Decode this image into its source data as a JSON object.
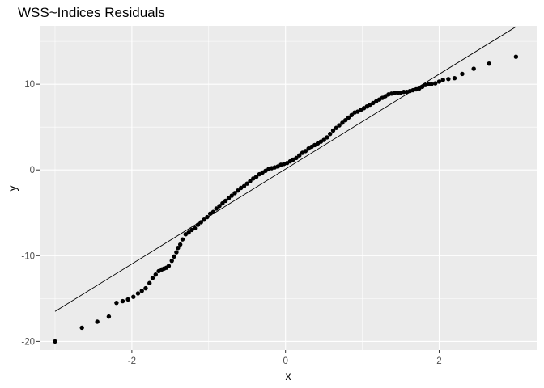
{
  "chart_data": {
    "type": "scatter",
    "title": "WSS~Indices Residuals",
    "xlabel": "x",
    "ylabel": "y",
    "xlim": [
      -3.2,
      3.27
    ],
    "ylim": [
      -21.0,
      16.8
    ],
    "x_ticks": [
      -2,
      0,
      2
    ],
    "x_tick_labels": [
      "-2",
      "0",
      "2"
    ],
    "x_minor_ticks": [
      -3,
      -1,
      1,
      3
    ],
    "y_ticks": [
      -20,
      -10,
      0,
      10
    ],
    "y_tick_labels": [
      "-20",
      "-10",
      "0",
      "10"
    ],
    "y_minor_ticks": [
      -15,
      -5,
      5,
      15
    ],
    "grid": true,
    "legend": "none",
    "reference_line": {
      "x": [
        -3.0,
        3.0
      ],
      "y": [
        -16.5,
        16.7
      ]
    },
    "points": {
      "x": [
        -3.0,
        -2.65,
        -2.45,
        -2.3,
        -2.2,
        -2.12,
        -2.05,
        -1.98,
        -1.92,
        -1.87,
        -1.82,
        -1.77,
        -1.73,
        -1.69,
        -1.65,
        -1.61,
        -1.58,
        -1.55,
        -1.52,
        -1.48,
        -1.45,
        -1.42,
        -1.4,
        -1.37,
        -1.34,
        -1.3,
        -1.26,
        -1.22,
        -1.18,
        -1.14,
        -1.1,
        -1.06,
        -1.02,
        -0.98,
        -0.94,
        -0.9,
        -0.86,
        -0.82,
        -0.78,
        -0.74,
        -0.7,
        -0.66,
        -0.62,
        -0.58,
        -0.54,
        -0.5,
        -0.46,
        -0.42,
        -0.38,
        -0.34,
        -0.3,
        -0.26,
        -0.22,
        -0.18,
        -0.14,
        -0.1,
        -0.06,
        -0.02,
        0.02,
        0.06,
        0.1,
        0.14,
        0.18,
        0.22,
        0.26,
        0.3,
        0.34,
        0.38,
        0.42,
        0.46,
        0.5,
        0.54,
        0.58,
        0.62,
        0.66,
        0.7,
        0.74,
        0.78,
        0.82,
        0.86,
        0.9,
        0.94,
        0.98,
        1.02,
        1.06,
        1.1,
        1.14,
        1.18,
        1.22,
        1.26,
        1.3,
        1.34,
        1.38,
        1.42,
        1.46,
        1.5,
        1.54,
        1.58,
        1.62,
        1.66,
        1.7,
        1.74,
        1.78,
        1.82,
        1.86,
        1.9,
        1.95,
        2.0,
        2.05,
        2.12,
        2.2,
        2.3,
        2.45,
        2.65,
        3.0
      ],
      "y": [
        -20.0,
        -18.4,
        -17.7,
        -17.1,
        -15.5,
        -15.3,
        -15.1,
        -14.8,
        -14.4,
        -14.1,
        -13.8,
        -13.2,
        -12.6,
        -12.2,
        -11.8,
        -11.6,
        -11.5,
        -11.4,
        -11.2,
        -10.6,
        -10.1,
        -9.6,
        -9.1,
        -8.7,
        -8.1,
        -7.5,
        -7.3,
        -7.0,
        -6.8,
        -6.4,
        -6.1,
        -5.8,
        -5.5,
        -5.1,
        -4.9,
        -4.5,
        -4.2,
        -3.9,
        -3.6,
        -3.3,
        -3.0,
        -2.7,
        -2.4,
        -2.1,
        -1.9,
        -1.6,
        -1.3,
        -1.0,
        -0.8,
        -0.5,
        -0.3,
        -0.1,
        0.1,
        0.2,
        0.3,
        0.4,
        0.6,
        0.7,
        0.8,
        1.0,
        1.2,
        1.4,
        1.7,
        2.0,
        2.2,
        2.5,
        2.7,
        2.9,
        3.1,
        3.3,
        3.5,
        3.8,
        4.2,
        4.6,
        4.9,
        5.2,
        5.5,
        5.8,
        6.1,
        6.4,
        6.7,
        6.8,
        7.0,
        7.2,
        7.4,
        7.6,
        7.8,
        8.0,
        8.2,
        8.4,
        8.6,
        8.8,
        8.9,
        9.0,
        9.0,
        9.0,
        9.1,
        9.1,
        9.2,
        9.3,
        9.4,
        9.5,
        9.7,
        9.9,
        10.0,
        10.0,
        10.1,
        10.3,
        10.5,
        10.6,
        10.7,
        11.2,
        11.8,
        12.4,
        13.2
      ]
    }
  }
}
